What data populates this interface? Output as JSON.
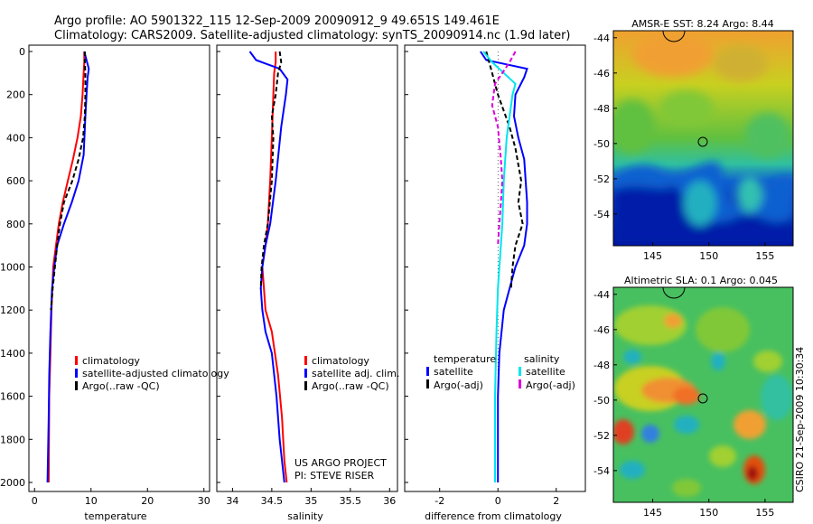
{
  "header": {
    "line1": "Argo profile: AO 5901322_115 12-Sep-2009 20090912_9 49.651S 149.461E",
    "line2": "Climatology: CARS2009. Satellite-adjusted climatology: synTS_20090914.nc (1.9d later)"
  },
  "colors": {
    "climatology": "#ff0000",
    "satellite": "#0000ff",
    "argo": "#000000",
    "sat_diff": "#00e5ee",
    "argo_adj": "#dd00dd"
  },
  "chart_data": [
    {
      "type": "line",
      "id": "temperature",
      "xlabel": "temperature",
      "ylabel": "",
      "xlim": [
        -1,
        31
      ],
      "ylim": [
        2050,
        0
      ],
      "y_reversed": true,
      "xticks": [
        0,
        10,
        20,
        30
      ],
      "yticks": [
        0,
        200,
        400,
        600,
        800,
        1000,
        1200,
        1400,
        1600,
        1800,
        2000
      ],
      "legend": [
        "climatology",
        "satellite-adjusted climatology",
        "Argo(..raw -QC)"
      ],
      "series": [
        {
          "name": "climatology",
          "color": "climatology",
          "dash": "",
          "x": [
            8.8,
            8.8,
            8.7,
            8.5,
            8.2,
            7.6,
            6.8,
            5.9,
            5.0,
            4.3,
            3.8,
            3.3,
            3.0,
            2.8,
            2.6,
            2.5
          ],
          "y": [
            0,
            50,
            100,
            200,
            300,
            400,
            500,
            600,
            700,
            800,
            900,
            1000,
            1200,
            1400,
            1600,
            2000
          ]
        },
        {
          "name": "satellite-adjusted climatology",
          "color": "satellite",
          "dash": "",
          "x": [
            8.8,
            9.3,
            9.6,
            9.4,
            9.2,
            9.0,
            8.7,
            7.8,
            6.6,
            5.2,
            4.0,
            3.5,
            3.1,
            2.8,
            2.6,
            2.5,
            2.3
          ],
          "y": [
            0,
            50,
            80,
            120,
            200,
            300,
            480,
            600,
            700,
            800,
            900,
            1000,
            1100,
            1300,
            1500,
            1700,
            2000
          ]
        },
        {
          "name": "Argo(..raw -QC)",
          "color": "argo",
          "dash": "5,3",
          "x": [
            8.9,
            8.9,
            9.0,
            9.0,
            8.9,
            8.6,
            7.8,
            6.7,
            5.2,
            4.5,
            4.0,
            3.6,
            3.2,
            2.9
          ],
          "y": [
            0,
            50,
            100,
            200,
            300,
            400,
            500,
            600,
            700,
            800,
            900,
            1000,
            1100,
            1200
          ]
        }
      ]
    },
    {
      "type": "line",
      "id": "salinity",
      "xlabel": "salinity",
      "ylabel": "",
      "xlim": [
        33.8,
        36.1
      ],
      "ylim": [
        2050,
        0
      ],
      "y_reversed": true,
      "xticks": [
        34,
        34.5,
        35,
        35.5,
        36
      ],
      "legend": [
        "climatology",
        "satellite adj. clim.",
        "Argo(..raw -QC)"
      ],
      "annotations": [
        "US ARGO PROJECT",
        "PI: STEVE RISER"
      ],
      "series": [
        {
          "name": "climatology",
          "color": "climatology",
          "dash": "",
          "x": [
            34.55,
            34.55,
            34.53,
            34.52,
            34.5,
            34.48,
            34.45,
            34.42,
            34.38,
            34.4,
            34.42,
            34.5,
            34.58,
            34.63,
            34.66,
            34.69
          ],
          "y": [
            0,
            50,
            100,
            200,
            400,
            600,
            800,
            900,
            1000,
            1100,
            1200,
            1300,
            1500,
            1700,
            1900,
            2000
          ]
        },
        {
          "name": "satellite adj. clim.",
          "color": "satellite",
          "dash": "",
          "x": [
            34.22,
            34.3,
            34.45,
            34.6,
            34.7,
            34.68,
            34.62,
            34.55,
            34.48,
            34.42,
            34.38,
            34.36,
            34.38,
            34.42,
            34.5,
            34.56,
            34.6,
            34.63,
            34.66
          ],
          "y": [
            0,
            40,
            60,
            80,
            130,
            200,
            350,
            600,
            800,
            900,
            1000,
            1100,
            1200,
            1300,
            1400,
            1600,
            1800,
            1900,
            2000
          ]
        },
        {
          "name": "Argo(..raw -QC)",
          "color": "argo",
          "dash": "5,3",
          "x": [
            34.6,
            34.62,
            34.58,
            34.55,
            34.5,
            34.52,
            34.5,
            34.45,
            34.4,
            34.37,
            34.36
          ],
          "y": [
            0,
            50,
            100,
            200,
            300,
            400,
            600,
            800,
            900,
            1000,
            1100
          ]
        }
      ]
    },
    {
      "type": "line",
      "id": "difference",
      "xlabel": "difference from climatology",
      "ylabel": "",
      "xlim": [
        -3.2,
        3.0
      ],
      "ylim": [
        2050,
        0
      ],
      "y_reversed": true,
      "xticks": [
        -2,
        0,
        2
      ],
      "legend_groups": [
        {
          "heading": "temperature",
          "entries": [
            "satellite",
            "Argo(-adj)"
          ]
        },
        {
          "heading": "salinity",
          "entries": [
            "satellite",
            "Argo(-adj)"
          ]
        }
      ],
      "series": [
        {
          "name": "satellite",
          "group": "temperature",
          "color": "satellite",
          "dash": "",
          "x": [
            -0.6,
            -0.4,
            0.3,
            1.0,
            0.9,
            0.6,
            0.55,
            0.7,
            0.9,
            1.0,
            1.0,
            0.9,
            0.6,
            0.4,
            0.2,
            0.05,
            0.0,
            0.0
          ],
          "y": [
            0,
            40,
            60,
            80,
            120,
            200,
            300,
            400,
            500,
            700,
            800,
            900,
            1000,
            1100,
            1200,
            1400,
            1600,
            2000
          ]
        },
        {
          "name": "Argo(-adj)",
          "group": "temperature",
          "color": "argo",
          "dash": "5,3",
          "x": [
            -0.4,
            -0.3,
            -0.2,
            0.0,
            0.4,
            0.6,
            0.8,
            0.7,
            0.85,
            0.6,
            0.5,
            0.45
          ],
          "y": [
            0,
            50,
            100,
            200,
            350,
            450,
            600,
            700,
            800,
            900,
            1000,
            1100
          ]
        },
        {
          "name": "satellite",
          "group": "salinity",
          "color": "sat_diff",
          "dash": "",
          "x": [
            -0.5,
            -0.2,
            0.2,
            0.6,
            0.5,
            0.3,
            0.2,
            0.15,
            0.1,
            0.05,
            0.0,
            -0.05,
            -0.1,
            -0.1
          ],
          "y": [
            0,
            50,
            100,
            150,
            200,
            400,
            600,
            800,
            900,
            1000,
            1100,
            1300,
            1600,
            2000
          ]
        },
        {
          "name": "Argo(-adj)",
          "group": "salinity",
          "color": "argo_adj",
          "dash": "5,3",
          "x": [
            0.6,
            0.4,
            -0.1,
            -0.2,
            0.0,
            0.1,
            0.15,
            0.1,
            0.05,
            0.0
          ],
          "y": [
            0,
            50,
            150,
            250,
            350,
            500,
            600,
            700,
            800,
            900
          ]
        }
      ]
    },
    {
      "type": "heatmap",
      "id": "sst_map",
      "title": "AMSR-E SST: 8.24 Argo: 8.44",
      "xticks": [
        145,
        150,
        155
      ],
      "yticks": [
        -44,
        -46,
        -48,
        -50,
        -52,
        -54
      ],
      "xlim": [
        141.5,
        157.5
      ],
      "ylim": [
        -55.8,
        -43.6
      ],
      "argo_position": [
        149.461,
        -49.651
      ]
    },
    {
      "type": "heatmap",
      "id": "sla_map",
      "title": "Altimetric SLA: 0.1 Argo: 0.045",
      "xticks": [
        145,
        150,
        155
      ],
      "yticks": [
        -44,
        -46,
        -48,
        -50,
        -52,
        -54
      ],
      "xlim": [
        141.5,
        157.5
      ],
      "ylim": [
        -55.8,
        -43.6
      ],
      "argo_position": [
        149.461,
        -49.651
      ]
    }
  ],
  "footer": {
    "stamp": "CSIRO 21-Sep-2009 10:30:34"
  }
}
